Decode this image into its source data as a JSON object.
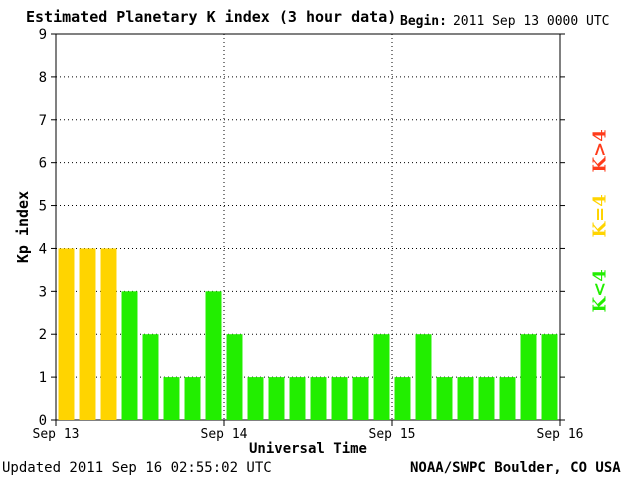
{
  "header": {
    "title": "Estimated Planetary K index (3 hour data)",
    "begin_label": "Begin:",
    "begin_value": "2011 Sep 13 0000 UTC"
  },
  "footer": {
    "updated": "Updated 2011 Sep 16 02:55:02 UTC",
    "credit": "NOAA/SWPC Boulder, CO USA"
  },
  "legend": {
    "high": {
      "text": "K>4",
      "color": "#ff3b1a"
    },
    "equal": {
      "text": "K=4",
      "color": "#ffd400"
    },
    "low": {
      "text": "K<4",
      "color": "#22ee00"
    }
  },
  "chart_data": {
    "type": "bar",
    "title": "Estimated Planetary K index (3 hour data)",
    "xlabel": "Universal Time",
    "ylabel": "Kp index",
    "ylim": [
      0,
      9
    ],
    "yticks": [
      "0",
      "1",
      "2",
      "3",
      "4",
      "5",
      "6",
      "7",
      "8",
      "9"
    ],
    "xticks": [
      "Sep 13",
      "Sep 14",
      "Sep 15",
      "Sep 16"
    ],
    "grid": true,
    "values": [
      4,
      4,
      4,
      3,
      2,
      1,
      1,
      3,
      2,
      1,
      1,
      1,
      1,
      1,
      1,
      2,
      1,
      2,
      1,
      1,
      1,
      1,
      2,
      2
    ],
    "colors": {
      "below4": "#22ee00",
      "equal4": "#ffd400",
      "above4": "#ff3b1a"
    }
  }
}
